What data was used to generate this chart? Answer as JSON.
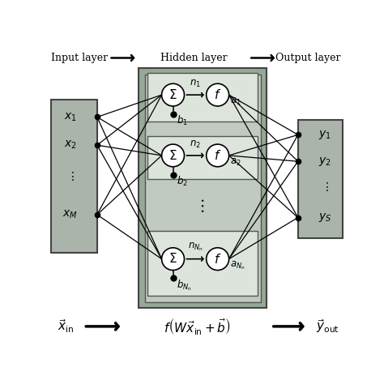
{
  "bg_color": "#ffffff",
  "outer_box_color": "#8a9a8a",
  "inner_box_color": "#b8c4b8",
  "neuron_box_color": "#d8e0d8",
  "input_box_color": "#aab0aa",
  "output_box_color": "#aab0aa",
  "circle_facecolor": "#ffffff",
  "title_input": "Input layer",
  "title_hidden": "Hidden layer",
  "title_output": "Output layer",
  "sigma_labels": [
    "Σ",
    "Σ",
    "Σ"
  ],
  "n_labels": [
    "$n_1$",
    "$n_2$",
    "$n_{N_{\\mathrm{n}}}$"
  ],
  "a_labels": [
    "$a_1$",
    "$a_2$",
    "$a_{N_{\\mathrm{n}}}$"
  ],
  "b_labels": [
    "$b_1$",
    "$b_2$",
    "$b_{N_{\\mathrm{n}}}$"
  ],
  "input_labels": [
    "$x_1$",
    "$x_2$",
    "$\\vdots$",
    "$x_M$"
  ],
  "output_labels": [
    "$y_1$",
    "$y_2$",
    "$\\vdots$",
    "$y_S$"
  ],
  "bottom_left": "$\\vec{x}_{\\mathrm{in}}$",
  "bottom_formula": "$f\\left(W\\vec{x}_{\\mathrm{in}} + \\vec{b}\\right)$",
  "bottom_right": "$\\vec{y}_{\\mathrm{out}}$"
}
